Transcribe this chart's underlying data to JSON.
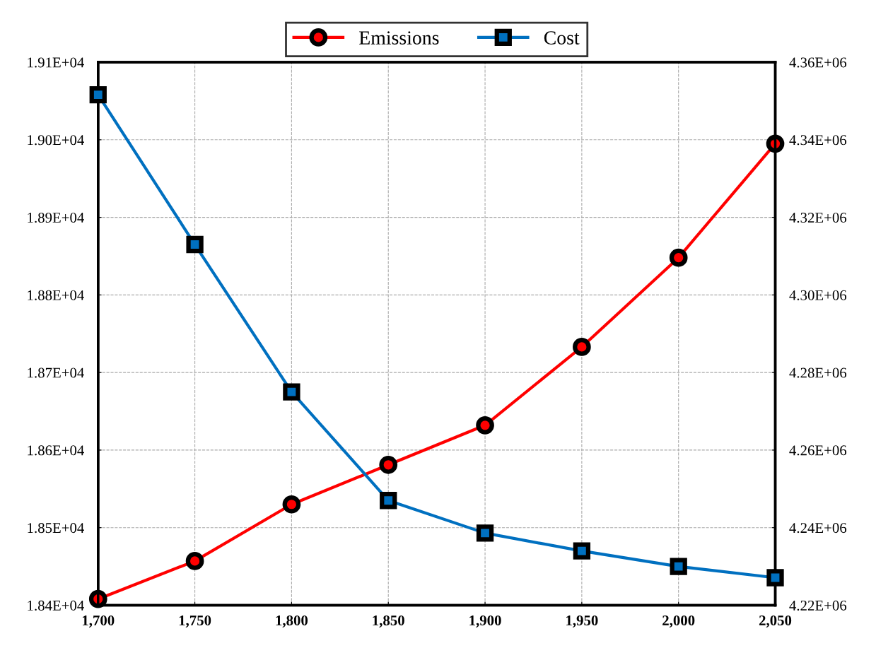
{
  "chart_data": {
    "type": "line",
    "x": [
      1700,
      1750,
      1800,
      1850,
      1900,
      1950,
      2000,
      2050
    ],
    "series": [
      {
        "name": "Emissions",
        "color": "#ff0000",
        "marker": "circle",
        "values": [
          18408,
          18457,
          18530,
          18581,
          18632,
          18733,
          18848,
          18995
        ]
      },
      {
        "name": "Cost",
        "color": "#0070c0",
        "marker": "square",
        "axis": "y2",
        "values": [
          4351600,
          4313000,
          4275000,
          4247000,
          4238600,
          4234000,
          4230000,
          4227100
        ]
      }
    ],
    "xlim": [
      1700,
      2050
    ],
    "xticks": [
      {
        "value": 1700,
        "label": "1,700"
      },
      {
        "value": 1750,
        "label": "1,750"
      },
      {
        "value": 1800,
        "label": "1,800"
      },
      {
        "value": 1850,
        "label": "1,850"
      },
      {
        "value": 1900,
        "label": "1,900"
      },
      {
        "value": 1950,
        "label": "1,950"
      },
      {
        "value": 2000,
        "label": "2,000"
      },
      {
        "value": 2050,
        "label": "2,050"
      }
    ],
    "ylim": [
      18400,
      19100
    ],
    "yticks": [
      {
        "value": 18400,
        "label": "1.84E+04"
      },
      {
        "value": 18500,
        "label": "1.85E+04"
      },
      {
        "value": 18600,
        "label": "1.86E+04"
      },
      {
        "value": 18700,
        "label": "1.87E+04"
      },
      {
        "value": 18800,
        "label": "1.88E+04"
      },
      {
        "value": 18900,
        "label": "1.89E+04"
      },
      {
        "value": 19000,
        "label": "1.90E+04"
      },
      {
        "value": 19100,
        "label": "1.91E+04"
      }
    ],
    "y2lim": [
      4220000,
      4360000
    ],
    "y2ticks": [
      {
        "value": 4220000,
        "label": "4.22E+06"
      },
      {
        "value": 4240000,
        "label": "4.24E+06"
      },
      {
        "value": 4260000,
        "label": "4.26E+06"
      },
      {
        "value": 4280000,
        "label": "4.28E+06"
      },
      {
        "value": 4300000,
        "label": "4.30E+06"
      },
      {
        "value": 4320000,
        "label": "4.32E+06"
      },
      {
        "value": 4340000,
        "label": "4.34E+06"
      },
      {
        "value": 4360000,
        "label": "4.36E+06"
      }
    ],
    "grid": true,
    "legend": "top",
    "line_style": "solid"
  }
}
